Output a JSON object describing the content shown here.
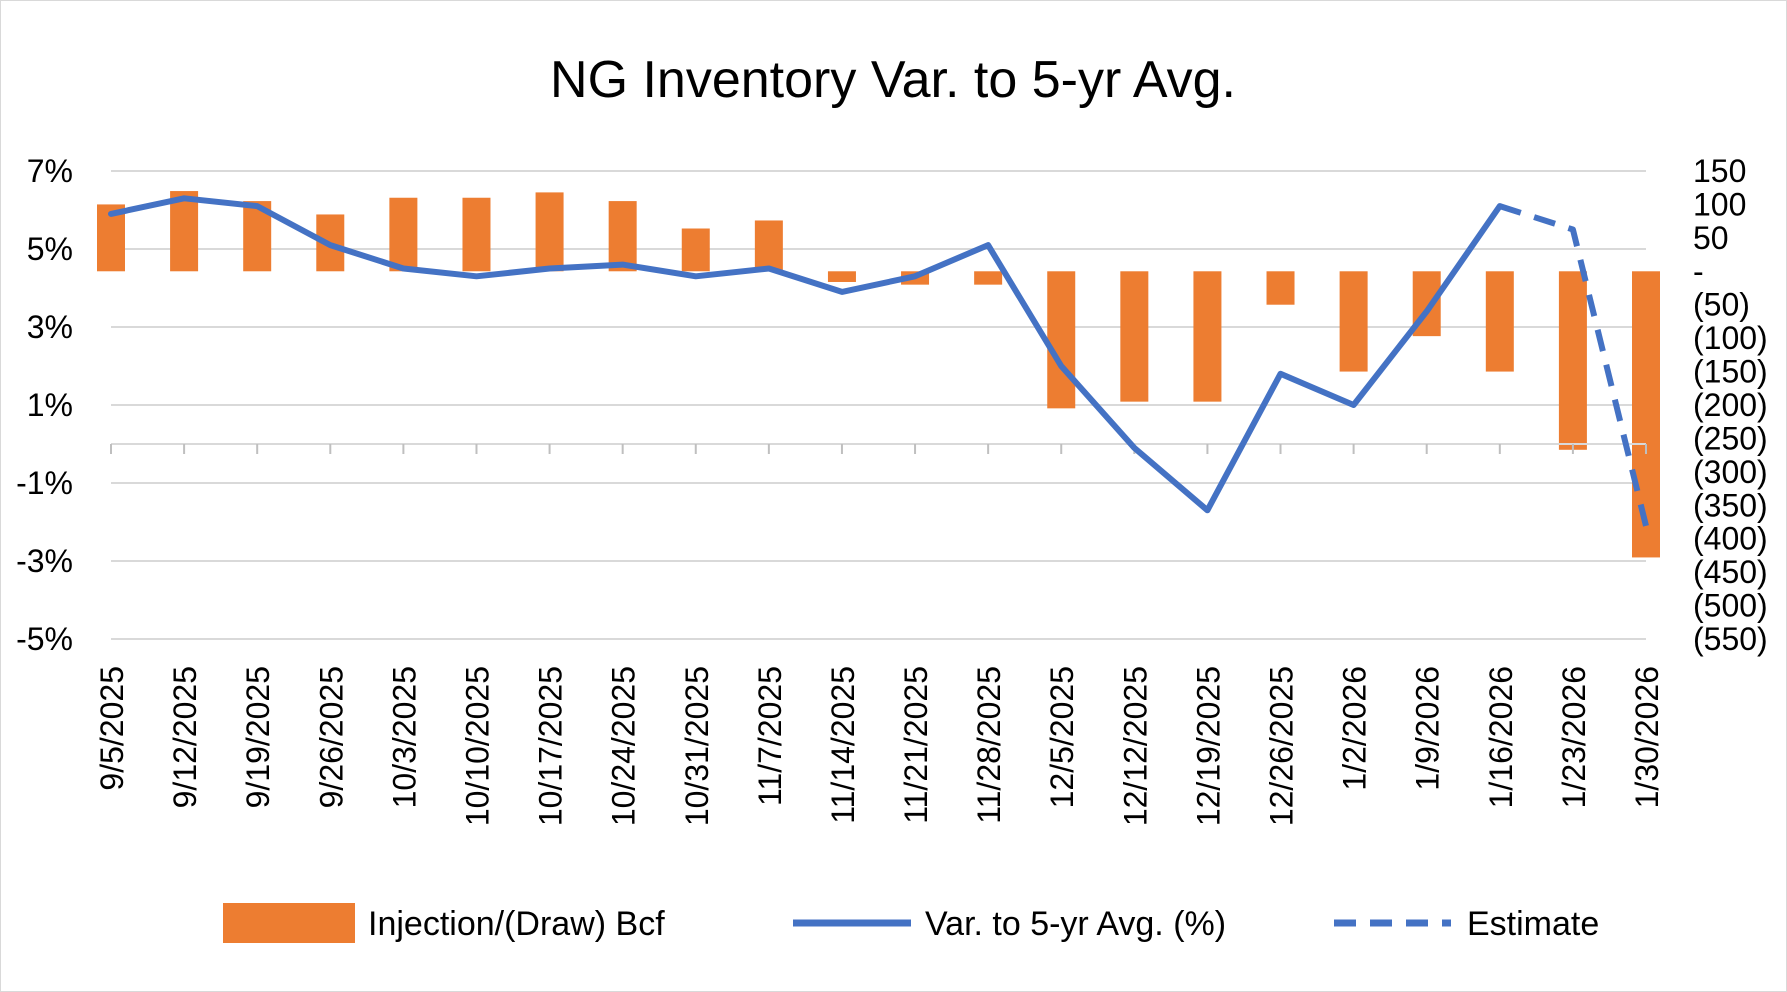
{
  "chart_data": {
    "type": "bar+line",
    "title": "NG Inventory Var. to 5-yr Avg.",
    "categories": [
      "9/5/2025",
      "9/12/2025",
      "9/19/2025",
      "9/26/2025",
      "10/3/2025",
      "10/10/2025",
      "10/17/2025",
      "10/24/2025",
      "10/31/2025",
      "11/7/2025",
      "11/14/2025",
      "11/21/2025",
      "11/28/2025",
      "12/5/2025",
      "12/12/2025",
      "12/19/2025",
      "12/26/2025",
      "1/2/2026",
      "1/9/2026",
      "1/16/2026",
      "1/23/2026",
      "1/30/2026"
    ],
    "left_axis": {
      "ylim": [
        -5,
        7
      ],
      "ticks": [
        7,
        5,
        3,
        1,
        -1,
        -3,
        -5
      ],
      "tick_labels": [
        "7%",
        "5%",
        "3%",
        "1%",
        "-1%",
        "-3%",
        "-5%"
      ]
    },
    "right_axis": {
      "ylim": [
        -550,
        150
      ],
      "ticks": [
        150,
        100,
        50,
        0,
        -50,
        -100,
        -150,
        -200,
        -250,
        -300,
        -350,
        -400,
        -450,
        -500,
        -550
      ],
      "tick_labels": [
        "150",
        "100",
        "50",
        "-",
        "(50)",
        "(100)",
        "(150)",
        "(200)",
        "(250)",
        "(300)",
        "(350)",
        "(400)",
        "(450)",
        "(500)",
        "(550)"
      ]
    },
    "series": [
      {
        "name": "Injection/(Draw) Bcf",
        "type": "bar",
        "axis": "right",
        "color": "#ED7D31",
        "values": [
          100,
          120,
          105,
          85,
          110,
          110,
          118,
          105,
          64,
          76,
          -16,
          -20,
          -20,
          -205,
          -195,
          -195,
          -50,
          -150,
          -97,
          -150,
          -267,
          -428
        ]
      },
      {
        "name": "Var. to 5-yr Avg. (%)",
        "type": "line",
        "axis": "left",
        "color": "#4472C4",
        "style": "solid",
        "values": [
          5.9,
          6.3,
          6.1,
          5.1,
          4.5,
          4.3,
          4.5,
          4.6,
          4.3,
          4.5,
          3.9,
          4.3,
          5.1,
          2.0,
          -0.1,
          -1.7,
          1.8,
          1.0,
          3.4,
          6.1,
          null,
          null
        ]
      },
      {
        "name": "Estimate",
        "type": "line",
        "axis": "left",
        "color": "#4472C4",
        "style": "dashed",
        "values": [
          null,
          null,
          null,
          null,
          null,
          null,
          null,
          null,
          null,
          null,
          null,
          null,
          null,
          null,
          null,
          null,
          null,
          null,
          null,
          6.1,
          5.5,
          -2.1
        ]
      }
    ],
    "legend": {
      "position": "bottom",
      "items": [
        "Injection/(Draw) Bcf",
        "Var. to 5-yr Avg. (%)",
        "Estimate"
      ]
    },
    "grid": true
  }
}
